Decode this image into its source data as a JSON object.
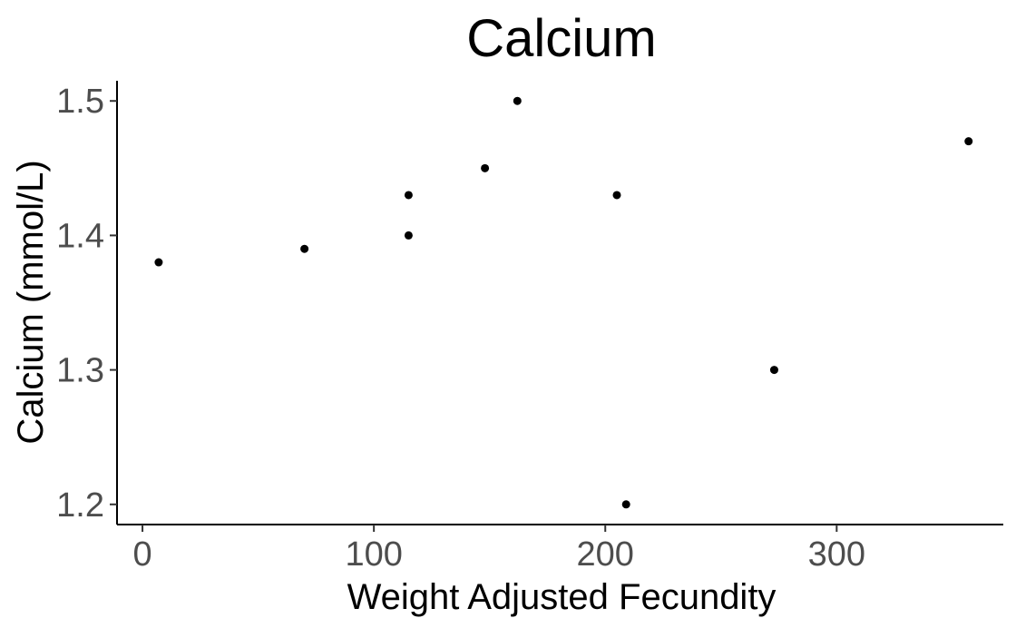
{
  "chart_data": {
    "type": "scatter",
    "title": "Calcium",
    "xlabel": "Weight Adjusted Fecundity",
    "ylabel": "Calcium (mmol/L)",
    "xlim": [
      -11,
      372
    ],
    "ylim": [
      1.185,
      1.515
    ],
    "xticks": [
      0,
      100,
      200,
      300
    ],
    "yticks": [
      1.2,
      1.3,
      1.4,
      1.5
    ],
    "xtick_labels": [
      "0",
      "100",
      "200",
      "300"
    ],
    "ytick_labels": [
      "1.2",
      "1.3",
      "1.4",
      "1.5"
    ],
    "grid": false,
    "legend": "none",
    "point_color": "#000000",
    "x": [
      7,
      70,
      115,
      115,
      148,
      162,
      205,
      209,
      273,
      357
    ],
    "y": [
      1.38,
      1.39,
      1.43,
      1.4,
      1.45,
      1.5,
      1.43,
      1.2,
      1.3,
      1.47
    ]
  }
}
